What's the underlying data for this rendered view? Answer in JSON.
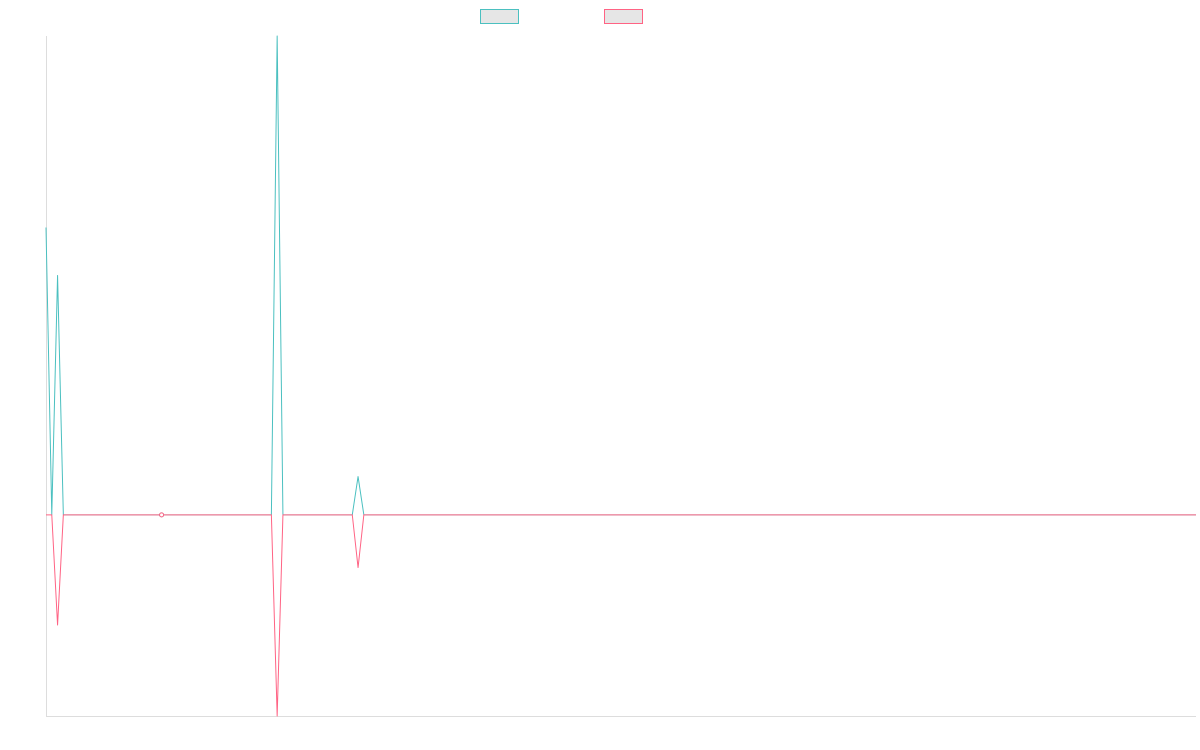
{
  "chart_data": {
    "type": "line",
    "title": "",
    "xlabel": "",
    "ylabel": "",
    "grid": false,
    "legend_placement": "top-center",
    "point_count": 200,
    "ylim": [
      -0.42,
      1.0
    ],
    "series": [
      {
        "name": "",
        "color": "#4bc0c0",
        "values": [
          0.6,
          0.0,
          0.5,
          0.0,
          0.0,
          0.0,
          0.0,
          0.0,
          0.0,
          0.0,
          0.0,
          0.0,
          0.0,
          0.0,
          0.0,
          0.0,
          0.0,
          0.0,
          0.0,
          0.0,
          0.0,
          0.0,
          0.0,
          0.0,
          0.0,
          0.0,
          0.0,
          0.0,
          0.0,
          0.0,
          0.0,
          0.0,
          0.0,
          0.0,
          0.0,
          0.0,
          0.0,
          0.0,
          0.0,
          0.0,
          1.0,
          0.0,
          0.0,
          0.0,
          0.0,
          0.0,
          0.0,
          0.0,
          0.0,
          0.0,
          0.0,
          0.0,
          0.0,
          0.0,
          0.08,
          0.0
        ]
      },
      {
        "name": "",
        "color": "#ff6384",
        "values": [
          0.0,
          0.0,
          -0.23,
          0.0,
          0.0,
          0.0,
          0.0,
          0.0,
          0.0,
          0.0,
          0.0,
          0.0,
          0.0,
          0.0,
          0.0,
          0.0,
          0.0,
          0.0,
          0.0,
          0.0,
          0.0,
          0.0,
          0.0,
          0.0,
          0.0,
          0.0,
          0.0,
          0.0,
          0.0,
          0.0,
          0.0,
          0.0,
          0.0,
          0.0,
          0.0,
          0.0,
          0.0,
          0.0,
          0.0,
          0.0,
          -0.42,
          0.0,
          0.0,
          0.0,
          0.0,
          0.0,
          0.0,
          0.0,
          0.0,
          0.0,
          0.0,
          0.0,
          0.0,
          0.0,
          -0.11,
          0.0
        ]
      }
    ],
    "markers": [
      {
        "series": 0,
        "index": 20
      },
      {
        "series": 1,
        "index": 20
      }
    ]
  }
}
